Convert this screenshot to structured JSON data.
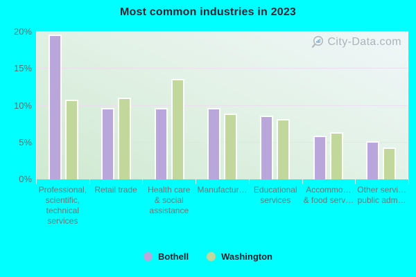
{
  "title": "Most common industries in 2023",
  "watermark": {
    "text": "City-Data.com",
    "icon": "magnifier-chart-icon"
  },
  "legend": [
    {
      "label": "Bothell",
      "color": "#b9a6da"
    },
    {
      "label": "Washington",
      "color": "#c2d79c"
    }
  ],
  "colors": {
    "page_background": "#00ffff",
    "bothell_bar": "#b9a6da",
    "washington_bar": "#c2d79c",
    "plot_gradient_top": "#f0f6f9",
    "plot_gradient_bottom": "#cfe9d1",
    "gridline": "#ecdbee",
    "axis_text": "#62787a"
  },
  "chart_data": {
    "type": "bar",
    "title": "Most common industries in 2023",
    "unit": "%",
    "categories": [
      "Professional, scientific, technical services",
      "Retail trade",
      "Health care & social assistance",
      "Manufactur…",
      "Educational services",
      "Accommo… & food serv…",
      "Other servi… public adm…"
    ],
    "category_display_lines": [
      [
        "Professional,",
        "scientific,",
        "technical",
        "services"
      ],
      [
        "Retail trade"
      ],
      [
        "Health care",
        "& social",
        "assistance"
      ],
      [
        "Manufactur…"
      ],
      [
        "Educational",
        "services"
      ],
      [
        "Accommo…",
        "& food serv…"
      ],
      [
        "Other servi…",
        "public adm…"
      ]
    ],
    "series": [
      {
        "name": "Bothell",
        "color": "#b9a6da",
        "values": [
          19.6,
          9.7,
          9.7,
          9.7,
          8.6,
          5.9,
          5.2
        ]
      },
      {
        "name": "Washington",
        "color": "#c2d79c",
        "values": [
          10.8,
          11.1,
          13.6,
          8.9,
          8.2,
          6.4,
          4.3
        ]
      }
    ],
    "xlabel": "",
    "ylabel": "",
    "ylim": [
      0,
      20
    ],
    "ytick_values": [
      0,
      5,
      10,
      15,
      20
    ],
    "ytick_labels": [
      "0%",
      "5%",
      "10%",
      "15%",
      "20%"
    ],
    "grid": true,
    "legend_position": "bottom"
  }
}
